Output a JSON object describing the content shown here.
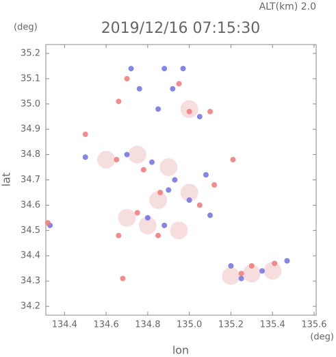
{
  "chart_data": {
    "type": "scatter",
    "title": "2019/12/16 07:15:30",
    "subtitle": "ALT(km) 2.0",
    "y_unit": "(deg)",
    "x_unit": "(deg)",
    "x_label": "lon",
    "y_label": "lat",
    "xlim": [
      134.31,
      135.61
    ],
    "ylim": [
      34.165,
      35.235
    ],
    "xticks": [
      134.4,
      134.6,
      134.8,
      {
        "value": 135.0,
        "label": "135.0"
      },
      135.2,
      135.4,
      135.6
    ],
    "yticks": [
      34.2,
      34.3,
      34.4,
      34.5,
      34.6,
      34.7,
      34.8,
      34.9,
      {
        "value": 35.0,
        "label": "35.0"
      },
      35.1,
      35.2
    ],
    "grid": false,
    "series": [
      {
        "color": "#f6dada",
        "x": [
          134.6,
          134.75,
          134.9,
          134.8,
          134.95,
          135.3,
          135.4,
          135.0,
          134.85,
          135.0,
          134.7,
          135.2
        ],
        "values": [
          34.78,
          34.8,
          34.75,
          34.52,
          34.5,
          34.33,
          34.34,
          34.98,
          34.62,
          34.65,
          34.55,
          34.32
        ]
      },
      {
        "color": "#7070e0",
        "x": [
          134.72,
          134.88,
          134.97,
          134.76,
          134.92,
          134.85,
          135.05,
          134.5,
          134.7,
          134.82,
          135.08,
          134.9,
          135.0,
          134.8,
          134.88,
          135.2,
          135.35,
          135.25,
          135.47,
          134.33,
          134.93,
          135.1
        ],
        "values": [
          35.14,
          35.14,
          35.14,
          35.06,
          35.06,
          34.98,
          34.95,
          34.79,
          34.8,
          34.77,
          34.72,
          34.66,
          34.62,
          34.55,
          34.52,
          34.36,
          34.34,
          34.31,
          34.38,
          34.52,
          34.7,
          34.56
        ]
      },
      {
        "color": "#f07878",
        "x": [
          134.7,
          134.66,
          134.95,
          135.0,
          135.1,
          134.5,
          134.65,
          134.78,
          135.21,
          135.12,
          134.86,
          134.75,
          134.85,
          134.66,
          134.68,
          135.3,
          135.41,
          135.25,
          134.32,
          135.05
        ],
        "values": [
          35.1,
          35.01,
          35.08,
          34.97,
          34.97,
          34.88,
          34.78,
          34.74,
          34.78,
          34.68,
          34.65,
          34.57,
          34.48,
          34.48,
          34.31,
          34.36,
          34.37,
          34.33,
          34.53,
          34.6
        ]
      }
    ]
  }
}
